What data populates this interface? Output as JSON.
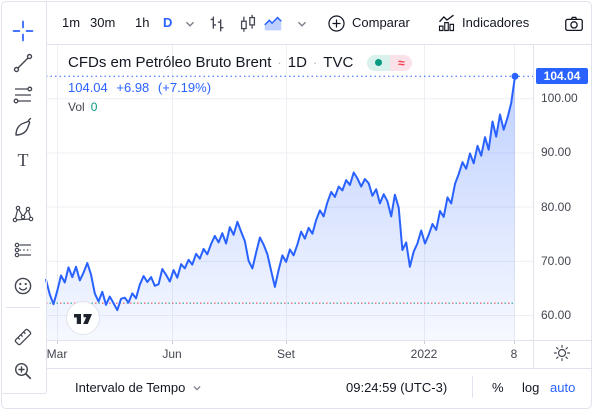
{
  "colors": {
    "accent": "#2962ff",
    "positive": "#089981",
    "negative": "#f23645",
    "grid": "#edeff5",
    "border": "#e0e3eb",
    "text": "#131722",
    "muted": "#434651",
    "tick": "#c9ccd3"
  },
  "toolbar": {
    "intervals": [
      {
        "label": "1m"
      },
      {
        "label": "30m"
      },
      {
        "label": "1h"
      },
      {
        "label": "D",
        "active": true
      }
    ],
    "style_icons": [
      "bars-icon",
      "candles-icon",
      "area-style-icon"
    ],
    "compare_label": "Comparar",
    "indicators_label": "Indicadores"
  },
  "sidebar": {
    "tools": [
      "crosshair-tool",
      "trend-line-tool",
      "fib-retracement-tool",
      "brush-tool",
      "text-tool",
      "xabcd-pattern-tool",
      "long-short-position-tool",
      "emoji-tool",
      "ruler-tool",
      "zoom-in-tool"
    ]
  },
  "legend": {
    "title": "CFDs em Petróleo Bruto Brent",
    "separator": "·",
    "interval": "1D",
    "exchange": "TVC",
    "approx_symbol": "≈",
    "price_line": {
      "last": "104.04",
      "change": "+6.98",
      "change_pct": "(+7.19%)"
    },
    "volume_label": "Vol",
    "volume_value": "0"
  },
  "watermark_logo": "17",
  "footer": {
    "interval_label": "Intervalo de Tempo",
    "clock": "09:24:59 (UTC-3)",
    "percent_label": "%",
    "log_label": "log",
    "auto_label": "auto"
  },
  "chart_data": {
    "type": "area",
    "title": "CFDs em Petróleo Bruto Brent",
    "interval": "1D",
    "exchange": "TVC",
    "last_price": 104.04,
    "last_price_label": "104.04",
    "prev_close_level": 62.3,
    "ylim": [
      55.4,
      110.0
    ],
    "grid": true,
    "y_ticks": [
      {
        "label": "100.00",
        "value": 100
      },
      {
        "label": "90.00",
        "value": 90
      },
      {
        "label": "80.00",
        "value": 80
      },
      {
        "label": "70.00",
        "value": 70
      },
      {
        "label": "60.00",
        "value": 60
      }
    ],
    "x_ticks": [
      {
        "label": "Mar",
        "x": 57
      },
      {
        "label": "Jun",
        "x": 172
      },
      {
        "label": "Set",
        "x": 286
      },
      {
        "label": "2022",
        "x": 424
      },
      {
        "label": "8",
        "x": 514
      }
    ],
    "prices": [
      66.5,
      63.8,
      62.0,
      64.5,
      67.3,
      66.0,
      68.8,
      67.0,
      68.9,
      66.4,
      67.8,
      69.6,
      67.5,
      64.0,
      62.5,
      64.3,
      61.9,
      63.4,
      62.2,
      60.9,
      63.0,
      63.2,
      62.3,
      64.0,
      63.1,
      65.6,
      67.2,
      66.1,
      67.0,
      65.4,
      65.7,
      68.5,
      67.4,
      66.2,
      68.3,
      66.9,
      69.4,
      68.6,
      70.2,
      69.3,
      71.3,
      70.4,
      72.2,
      71.2,
      73.1,
      74.6,
      73.4,
      75.1,
      73.2,
      76.2,
      74.8,
      77.2,
      75.4,
      73.6,
      70.0,
      68.6,
      71.5,
      74.3,
      73.0,
      71.2,
      68.2,
      65.2,
      68.3,
      71.0,
      69.8,
      72.1,
      71.0,
      73.0,
      75.4,
      74.1,
      76.1,
      75.0,
      77.5,
      79.3,
      78.2,
      80.8,
      82.7,
      81.8,
      83.7,
      83.0,
      84.9,
      84.0,
      86.3,
      85.2,
      83.7,
      85.1,
      84.3,
      82.0,
      83.2,
      80.6,
      82.3,
      81.0,
      78.2,
      82.2,
      79.8,
      72.0,
      73.4,
      68.9,
      71.7,
      73.2,
      75.6,
      73.2,
      74.8,
      76.8,
      75.7,
      79.2,
      78.1,
      81.7,
      80.6,
      84.2,
      86.0,
      88.2,
      87.0,
      89.8,
      88.0,
      91.2,
      89.4,
      92.8,
      90.5,
      95.7,
      92.9,
      97.0,
      94.2,
      96.4,
      99.1,
      104.04
    ]
  }
}
